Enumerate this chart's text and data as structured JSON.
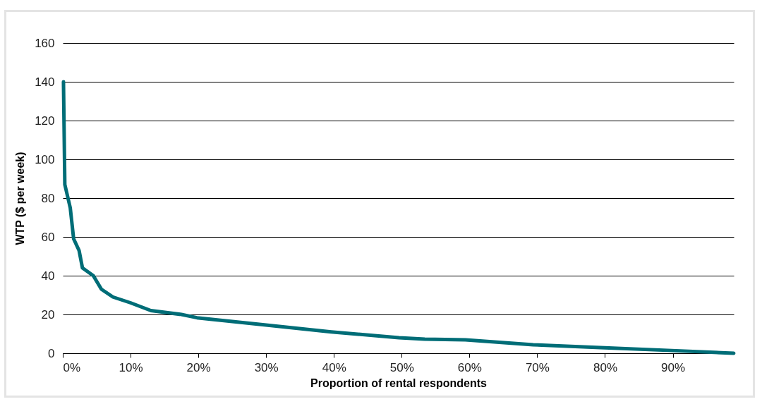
{
  "chart_data": {
    "type": "line",
    "xlabel": "Proportion of rental respondents",
    "ylabel": "WTP ($ per week)",
    "x": [
      0.1,
      0.3,
      1.1,
      1.6,
      2.4,
      2.9,
      4.5,
      5.7,
      7.4,
      10,
      13,
      17.5,
      19.8,
      29.5,
      39.6,
      49.6,
      53.4,
      59.4,
      69.4,
      79.3,
      89.2,
      99
    ],
    "series": [
      {
        "color": "#006d77",
        "values": [
          140,
          87,
          75,
          59,
          53,
          44,
          40,
          33,
          29,
          26,
          22,
          20,
          18.3,
          14.7,
          11,
          8,
          7.3,
          6.9,
          4.4,
          2.9,
          1.5,
          0
        ]
      }
    ],
    "xlim": [
      0,
      99
    ],
    "ylim": [
      0,
      160
    ],
    "xticks": [
      {
        "value": 0,
        "label": "0%"
      },
      {
        "value": 10,
        "label": "10%"
      },
      {
        "value": 20,
        "label": "20%"
      },
      {
        "value": 30,
        "label": "30%"
      },
      {
        "value": 40,
        "label": "40%"
      },
      {
        "value": 50,
        "label": "50%"
      },
      {
        "value": 60,
        "label": "60%"
      },
      {
        "value": 70,
        "label": "70%"
      },
      {
        "value": 80,
        "label": "80%"
      },
      {
        "value": 90,
        "label": "90%"
      }
    ],
    "yticks": [
      0,
      20,
      40,
      60,
      80,
      100,
      120,
      140,
      160
    ],
    "grid": "y",
    "marker": "none",
    "line_style": "solid"
  }
}
